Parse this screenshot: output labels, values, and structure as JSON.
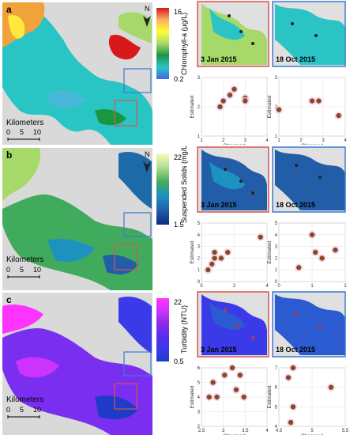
{
  "panels": [
    {
      "letter": "a",
      "colorbar": {
        "max": "16",
        "min": "0.2",
        "label": "Chlorophyll-a (μg/L)",
        "colors": [
          "#d7191c",
          "#fdae61",
          "#ffff33",
          "#a6d96a",
          "#1a9641",
          "#2bc4c4",
          "#4169e1"
        ]
      },
      "scale": {
        "title": "Kilometers",
        "ticks": [
          "0",
          "5",
          "10"
        ]
      },
      "north": "N",
      "insets": [
        {
          "date": "3 Jan 2015",
          "border_color": "#d9534f"
        },
        {
          "date": "18 Oct 2015",
          "border_color": "#3a7bd5"
        }
      ],
      "scatters": [
        {
          "xlabel": "Observed",
          "ylabel": "Estimated",
          "xticks": [
            "1",
            "2",
            "3",
            "4"
          ],
          "yticks": [
            "1",
            "2",
            "3"
          ],
          "xlim": [
            1,
            4
          ],
          "ylim": [
            1,
            3
          ],
          "points": [
            [
              1.85,
              2.0
            ],
            [
              2.0,
              2.2
            ],
            [
              2.3,
              2.4
            ],
            [
              2.5,
              2.6
            ],
            [
              3.0,
              2.3
            ],
            [
              3.0,
              2.2
            ]
          ]
        },
        {
          "xlabel": "Observed",
          "ylabel": "Estimated",
          "xticks": [
            "1",
            "2",
            "3",
            "4"
          ],
          "yticks": [
            "1",
            "2",
            "3"
          ],
          "xlim": [
            1,
            4
          ],
          "ylim": [
            1,
            3
          ],
          "points": [
            [
              1.0,
              1.9
            ],
            [
              2.5,
              2.2
            ],
            [
              2.8,
              2.2
            ],
            [
              3.7,
              1.7
            ]
          ]
        }
      ]
    },
    {
      "letter": "b",
      "colorbar": {
        "max": "22",
        "min": "1.5",
        "label": "Suspended Solids (mg/L)",
        "colors": [
          "#f7fcb9",
          "#addd8e",
          "#41ab5d",
          "#1d91c0",
          "#225ea8",
          "#0c2c84"
        ]
      },
      "scale": {
        "title": "Kilometers",
        "ticks": [
          "0",
          "5",
          "10"
        ]
      },
      "north": "N",
      "insets": [
        {
          "date": "3 Jan 2015",
          "border_color": "#d9534f"
        },
        {
          "date": "18 Oct 2015",
          "border_color": "#3a7bd5"
        }
      ],
      "scatters": [
        {
          "xlabel": "",
          "ylabel": "Estimated",
          "xticks": [
            "0",
            "2",
            "4"
          ],
          "yticks": [
            "0",
            "1",
            "2",
            "3",
            "4",
            "5"
          ],
          "xlim": [
            0,
            5
          ],
          "ylim": [
            0,
            5
          ],
          "points": [
            [
              0.5,
              1.0
            ],
            [
              0.8,
              1.5
            ],
            [
              1.0,
              2.0
            ],
            [
              1.0,
              2.5
            ],
            [
              1.5,
              2.0
            ],
            [
              2.0,
              2.5
            ],
            [
              4.5,
              3.8
            ]
          ]
        },
        {
          "xlabel": "",
          "ylabel": "Estimated",
          "xticks": [
            "0",
            "1",
            "2"
          ],
          "yticks": [
            "0",
            "1",
            "2",
            "3",
            "4",
            "5"
          ],
          "xlim": [
            0,
            2
          ],
          "ylim": [
            0,
            5
          ],
          "points": [
            [
              0.6,
              1.2
            ],
            [
              1.0,
              4.0
            ],
            [
              1.1,
              2.5
            ],
            [
              1.3,
              2.0
            ],
            [
              1.7,
              2.7
            ]
          ]
        }
      ]
    },
    {
      "letter": "c",
      "colorbar": {
        "max": "22",
        "min": "0.5",
        "label": "Turbidity (NTU)",
        "colors": [
          "#ff33ff",
          "#cc33ff",
          "#8a2be2",
          "#5a2df0",
          "#3a3ae8",
          "#1e3cc8"
        ]
      },
      "scale": {
        "title": "Kilometers",
        "ticks": [
          "0",
          "5",
          "10"
        ]
      },
      "north": "",
      "insets": [
        {
          "date": "3 Jan 2015",
          "border_color": "#d9534f"
        },
        {
          "date": "18 Oct 2015",
          "border_color": "#3a7bd5"
        }
      ],
      "scatters": [
        {
          "xlabel": "Observed",
          "ylabel": "Estimated",
          "xticks": [
            "2.5",
            "3",
            "3.5",
            "4"
          ],
          "yticks": [
            "2",
            "3",
            "4",
            "5",
            "6"
          ],
          "xlim": [
            2.3,
            4.0
          ],
          "ylim": [
            2,
            6
          ],
          "points": [
            [
              2.5,
              4.0
            ],
            [
              2.6,
              5.0
            ],
            [
              2.7,
              4.0
            ],
            [
              2.9,
              5.5
            ],
            [
              3.1,
              6.0
            ],
            [
              3.2,
              4.5
            ],
            [
              3.3,
              5.5
            ],
            [
              3.4,
              4.0
            ]
          ]
        },
        {
          "xlabel": "Observed",
          "ylabel": "Estimated",
          "xticks": [
            "4.5",
            "5",
            "5.5"
          ],
          "yticks": [
            "4",
            "5",
            "6",
            "7"
          ],
          "xlim": [
            4.1,
            5.5
          ],
          "ylim": [
            4,
            7
          ],
          "points": [
            [
              4.3,
              6.5
            ],
            [
              4.35,
              4.2
            ],
            [
              4.4,
              7.0
            ],
            [
              4.4,
              5.0
            ],
            [
              5.2,
              6.0
            ]
          ]
        }
      ]
    }
  ]
}
